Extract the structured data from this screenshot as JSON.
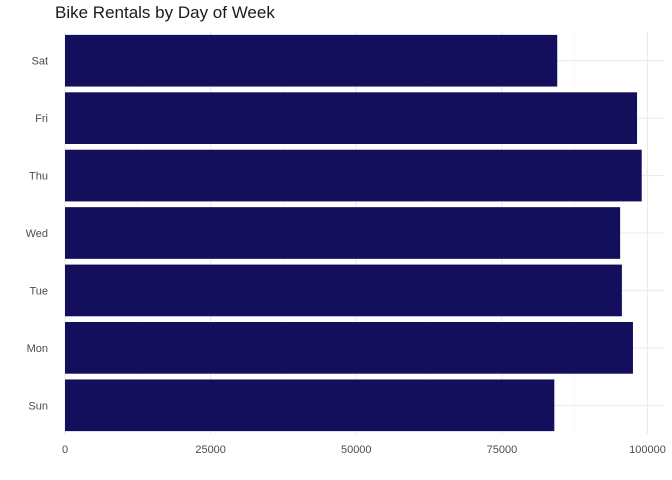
{
  "chart_data": {
    "type": "bar",
    "orientation": "horizontal",
    "title": "Bike Rentals by Day of Week",
    "xlabel": "",
    "ylabel": "",
    "categories": [
      "Sun",
      "Mon",
      "Tue",
      "Wed",
      "Thu",
      "Fri",
      "Sat"
    ],
    "values": [
      84000,
      97500,
      95600,
      95300,
      99000,
      98200,
      84500
    ],
    "xlim": [
      0,
      103000
    ],
    "x_ticks": [
      0,
      25000,
      50000,
      75000,
      100000
    ],
    "x_tick_labels": [
      "0",
      "25000",
      "50000",
      "75000",
      "100000"
    ],
    "bar_color": "#140F5C",
    "grid": true,
    "legend": "none"
  }
}
